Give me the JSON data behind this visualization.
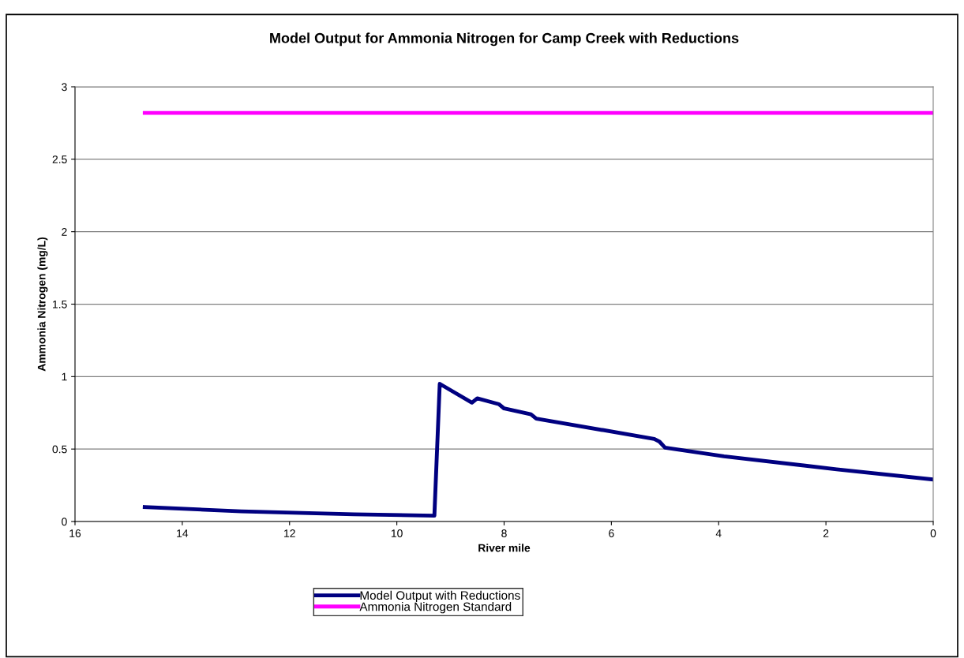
{
  "chart_data": {
    "type": "line",
    "title": "Model Output for Ammonia Nitrogen for Camp Creek with Reductions",
    "xlabel": "River mile",
    "ylabel": "Ammonia Nitrogen (mg/L)",
    "xlim": [
      16,
      0
    ],
    "xticks": [
      16,
      14,
      12,
      10,
      8,
      6,
      4,
      2,
      0
    ],
    "ylim": [
      0,
      3
    ],
    "yticks": [
      0,
      0.5,
      1,
      1.5,
      2,
      2.5,
      3
    ],
    "grid": "y",
    "legend": "bottom",
    "marker": "none",
    "line_style": "solid",
    "series": [
      {
        "name": "Model Output with Reductions",
        "color": "#000080",
        "x": [
          14.7,
          12.9,
          10.8,
          9.3,
          9.2,
          8.6,
          8.5,
          8.1,
          8.0,
          7.5,
          7.4,
          5.2,
          5.1,
          5.0,
          3.9,
          1.8,
          0
        ],
        "values": [
          0.1,
          0.07,
          0.05,
          0.04,
          0.95,
          0.82,
          0.85,
          0.81,
          0.78,
          0.74,
          0.71,
          0.57,
          0.55,
          0.51,
          0.45,
          0.36,
          0.29
        ]
      },
      {
        "name": "Ammonia Nitrogen Standard",
        "color": "#ff00ff",
        "x": [
          14.7,
          0
        ],
        "values": [
          2.82,
          2.82
        ]
      }
    ]
  }
}
